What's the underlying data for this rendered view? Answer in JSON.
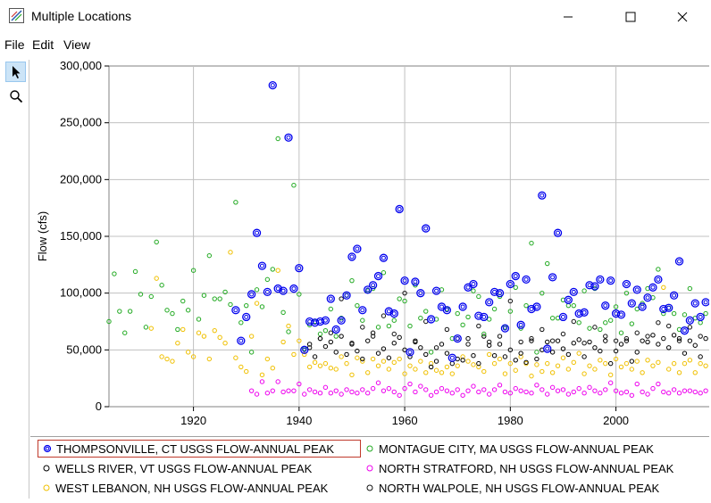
{
  "window": {
    "title": "Multiple Locations",
    "minimize_glyph": "—",
    "maximize_glyph": "☐",
    "close_glyph": "✕"
  },
  "menu": [
    "File",
    "Edit",
    "View"
  ],
  "toolbar": {
    "tools": [
      {
        "icon": "pointer-icon",
        "active": true
      },
      {
        "icon": "zoom-icon",
        "active": false
      }
    ]
  },
  "colors": {
    "thompsonville": "#0000ee",
    "montague": "#22aa22",
    "wells_river": "#000000",
    "north_stratford": "#ee00ee",
    "west_lebanon": "#f0c000",
    "north_walpole": "#111111",
    "grid": "#c0c0c0",
    "selection": "#c0392b"
  },
  "chart_data": {
    "type": "scatter",
    "ylabel": "Flow (cfs)",
    "xlabel": "",
    "title": "",
    "xlim": [
      1904,
      2018
    ],
    "ylim": [
      0,
      300000
    ],
    "x_ticks": [
      "1920",
      "1940",
      "1960",
      "1980",
      "2000"
    ],
    "y_ticks": [
      "0",
      "50,000",
      "100,000",
      "150,000",
      "200,000",
      "250,000",
      "300,000"
    ],
    "grid": true,
    "legend_position": "bottom",
    "legend": [
      "THOMPSONVILLE, CT USGS FLOW-ANNUAL PEAK",
      "MONTAGUE CITY, MA USGS FLOW-ANNUAL PEAK",
      "WELLS RIVER, VT USGS FLOW-ANNUAL PEAK",
      "NORTH STRATFORD, NH USGS FLOW-ANNUAL PEAK",
      "WEST LEBANON, NH USGS FLOW-ANNUAL PEAK",
      "NORTH WALPOLE, NH USGS FLOW-ANNUAL PEAK"
    ],
    "selected_series": 0,
    "series": [
      {
        "name": "THOMPSONVILLE, CT USGS FLOW-ANNUAL PEAK",
        "color_key": "thompsonville",
        "marker": "double-circle",
        "x": [
          1928,
          1929,
          1930,
          1931,
          1932,
          1933,
          1934,
          1935,
          1936,
          1937,
          1938,
          1939,
          1940,
          1941,
          1942,
          1943,
          1944,
          1945,
          1946,
          1947,
          1948,
          1949,
          1950,
          1951,
          1952,
          1953,
          1954,
          1955,
          1956,
          1957,
          1958,
          1959,
          1960,
          1961,
          1962,
          1963,
          1964,
          1965,
          1966,
          1967,
          1968,
          1969,
          1970,
          1971,
          1972,
          1973,
          1974,
          1975,
          1976,
          1977,
          1978,
          1979,
          1980,
          1981,
          1982,
          1983,
          1984,
          1985,
          1986,
          1987,
          1988,
          1989,
          1990,
          1991,
          1992,
          1993,
          1994,
          1995,
          1996,
          1997,
          1998,
          1999,
          2000,
          2001,
          2002,
          2003,
          2004,
          2005,
          2006,
          2007,
          2008,
          2009,
          2010,
          2011,
          2012,
          2013,
          2014,
          2015,
          2016,
          2017
        ],
        "y": [
          85000,
          58000,
          79000,
          99000,
          153000,
          124000,
          101000,
          283000,
          104000,
          102000,
          237000,
          104000,
          122000,
          50000,
          75000,
          74000,
          75000,
          76000,
          95000,
          68000,
          76000,
          98000,
          132000,
          139000,
          85000,
          103000,
          107000,
          115000,
          131000,
          84000,
          82000,
          174000,
          111000,
          48000,
          110000,
          100000,
          157000,
          77000,
          102000,
          88000,
          85000,
          43000,
          60000,
          88000,
          105000,
          108000,
          80000,
          79000,
          92000,
          101000,
          100000,
          69000,
          108000,
          115000,
          72000,
          112000,
          86000,
          88000,
          186000,
          51000,
          114000,
          153000,
          79000,
          94000,
          101000,
          82000,
          83000,
          107000,
          106000,
          112000,
          89000,
          111000,
          82000,
          81000,
          108000,
          91000,
          103000,
          88000,
          96000,
          105000,
          112000,
          86000,
          87000,
          98000,
          128000,
          67000,
          76000,
          91000,
          79000,
          92000
        ]
      },
      {
        "name": "MONTAGUE CITY, MA USGS FLOW-ANNUAL PEAK",
        "color_key": "montague",
        "marker": "circle",
        "x": [
          1904,
          1905,
          1906,
          1907,
          1908,
          1909,
          1910,
          1911,
          1912,
          1913,
          1914,
          1915,
          1916,
          1917,
          1918,
          1919,
          1920,
          1921,
          1922,
          1923,
          1924,
          1925,
          1926,
          1927,
          1928,
          1929,
          1930,
          1931,
          1932,
          1933,
          1934,
          1935,
          1936,
          1937,
          1938,
          1939,
          1940,
          1941,
          1942,
          1943,
          1944,
          1945,
          1946,
          1947,
          1948,
          1949,
          1950,
          1951,
          1952,
          1953,
          1954,
          1955,
          1956,
          1957,
          1958,
          1959,
          1960,
          1961,
          1962,
          1963,
          1964,
          1965,
          1966,
          1967,
          1968,
          1969,
          1970,
          1971,
          1972,
          1973,
          1974,
          1975,
          1976,
          1977,
          1978,
          1979,
          1980,
          1981,
          1982,
          1983,
          1984,
          1985,
          1986,
          1987,
          1988,
          1989,
          1990,
          1991,
          1992,
          1993,
          1994,
          1995,
          1996,
          1997,
          1998,
          1999,
          2000,
          2001,
          2002,
          2003,
          2004,
          2005,
          2006,
          2007,
          2008,
          2009,
          2010,
          2011,
          2012,
          2013,
          2014,
          2015,
          2016,
          2017
        ],
        "y": [
          75000,
          117000,
          84000,
          65000,
          84000,
          119000,
          99000,
          70000,
          97000,
          145000,
          107000,
          85000,
          82000,
          68000,
          93000,
          85000,
          120000,
          77000,
          98000,
          133000,
          95000,
          95000,
          101000,
          90000,
          180000,
          74000,
          89000,
          48000,
          103000,
          88000,
          112000,
          121000,
          236000,
          83000,
          66000,
          195000,
          99000,
          51000,
          72000,
          75000,
          64000,
          67000,
          86000,
          62000,
          78000,
          98000,
          111000,
          89000,
          76000,
          102000,
          104000,
          70000,
          118000,
          71000,
          76000,
          95000,
          93000,
          71000,
          107000,
          78000,
          84000,
          48000,
          77000,
          103000,
          86000,
          60000,
          82000,
          72000,
          79000,
          102000,
          97000,
          64000,
          77000,
          86000,
          97000,
          70000,
          84000,
          105000,
          69000,
          89000,
          144000,
          48000,
          100000,
          126000,
          78000,
          78000,
          94000,
          89000,
          89000,
          74000,
          102000,
          69000,
          104000,
          68000,
          74000,
          76000,
          88000,
          65000,
          100000,
          73000,
          86000,
          91000,
          104000,
          96000,
          121000,
          82000,
          87000,
          82000,
          68000,
          81000,
          104000,
          78000,
          74000,
          82000
        ]
      },
      {
        "name": "WELLS RIVER, VT USGS FLOW-ANNUAL PEAK",
        "color_key": "wells_river",
        "marker": "circle",
        "x": [
          1942,
          1943,
          1944,
          1945,
          1946,
          1947,
          1948,
          1949,
          1950,
          1951,
          1952,
          1953,
          1954,
          1955,
          1956,
          1957,
          1958,
          1959,
          1960,
          1961,
          1962,
          1963,
          1964,
          1965,
          1966,
          1967,
          1968,
          1969,
          1970,
          1971,
          1972,
          1973,
          1974,
          1975,
          1976,
          1977,
          1978,
          1979,
          1980,
          1981,
          1982,
          1983,
          1984,
          1985,
          1986,
          1987,
          1988,
          1989,
          1990,
          1991,
          1992,
          1993,
          1994,
          1995,
          1996,
          1997,
          1998,
          1999,
          2000,
          2001,
          2002,
          2003,
          2004,
          2005,
          2006,
          2007,
          2008,
          2009,
          2010,
          2011,
          2012,
          2013,
          2014,
          2015,
          2016,
          2017
        ],
        "y": [
          55000,
          44000,
          60000,
          53000,
          57000,
          48000,
          62000,
          46000,
          55000,
          49000,
          42000,
          58000,
          65000,
          47000,
          51000,
          43000,
          56000,
          61000,
          50000,
          44000,
          57000,
          52000,
          46000,
          35000,
          40000,
          55000,
          47000,
          38000,
          42000,
          41000,
          60000,
          45000,
          38000,
          62000,
          54000,
          45000,
          55000,
          44000,
          50000,
          41000,
          47000,
          39000,
          58000,
          42000,
          50000,
          57000,
          48000,
          58000,
          51000,
          46000,
          56000,
          59000,
          44000,
          57000,
          52000,
          49000,
          58000,
          38000,
          49000,
          55000,
          58000,
          40000,
          48000,
          58000,
          57000,
          63000,
          55000,
          60000,
          52000,
          63000,
          60000,
          47000,
          58000,
          54000,
          44000,
          60000
        ]
      },
      {
        "name": "NORTH STRATFORD, NH USGS FLOW-ANNUAL PEAK",
        "color_key": "north_stratford",
        "marker": "circle",
        "x": [
          1931,
          1932,
          1933,
          1934,
          1935,
          1936,
          1937,
          1938,
          1939,
          1940,
          1941,
          1942,
          1943,
          1944,
          1945,
          1946,
          1947,
          1948,
          1949,
          1950,
          1951,
          1952,
          1953,
          1954,
          1955,
          1956,
          1957,
          1958,
          1959,
          1960,
          1961,
          1962,
          1963,
          1964,
          1965,
          1966,
          1967,
          1968,
          1969,
          1970,
          1971,
          1972,
          1973,
          1974,
          1975,
          1976,
          1977,
          1978,
          1979,
          1980,
          1981,
          1982,
          1983,
          1984,
          1985,
          1986,
          1987,
          1988,
          1989,
          1990,
          1991,
          1992,
          1993,
          1994,
          1995,
          1996,
          1997,
          1998,
          1999,
          2000,
          2001,
          2002,
          2003,
          2004,
          2005,
          2006,
          2007,
          2008,
          2009,
          2010,
          2011,
          2012,
          2013,
          2014,
          2015,
          2016,
          2017
        ],
        "y": [
          14000,
          11000,
          22000,
          12000,
          14000,
          22000,
          13000,
          14000,
          14000,
          20000,
          11000,
          15000,
          13000,
          12000,
          17000,
          12000,
          14000,
          11000,
          15000,
          13000,
          12000,
          15000,
          12000,
          16000,
          21000,
          14000,
          16000,
          13000,
          10000,
          16000,
          20000,
          13000,
          18000,
          15000,
          10000,
          13000,
          16000,
          14000,
          12000,
          15000,
          10000,
          14000,
          18000,
          13000,
          15000,
          11000,
          15000,
          19000,
          13000,
          12000,
          16000,
          14000,
          13000,
          12000,
          19000,
          15000,
          11000,
          17000,
          14000,
          15000,
          11000,
          13000,
          16000,
          12000,
          17000,
          14000,
          12000,
          15000,
          21000,
          14000,
          12000,
          13000,
          10000,
          20000,
          13000,
          11000,
          16000,
          20000,
          13000,
          12000,
          15000,
          12000,
          14000,
          14000,
          13000,
          12000,
          14000
        ]
      },
      {
        "name": "WEST LEBANON, NH USGS FLOW-ANNUAL PEAK",
        "color_key": "west_lebanon",
        "marker": "circle",
        "x": [
          1912,
          1913,
          1914,
          1915,
          1916,
          1917,
          1918,
          1919,
          1920,
          1921,
          1922,
          1923,
          1924,
          1925,
          1926,
          1927,
          1928,
          1929,
          1930,
          1931,
          1932,
          1933,
          1934,
          1935,
          1936,
          1937,
          1938,
          1939,
          1940,
          1941,
          1942,
          1943,
          1944,
          1945,
          1946,
          1947,
          1948,
          1949,
          1950,
          1951,
          1952,
          1953,
          1954,
          1955,
          1956,
          1957,
          1958,
          1959,
          1960,
          1961,
          1962,
          1963,
          1964,
          1965,
          1966,
          1967,
          1968,
          1969,
          1970,
          1971,
          1972,
          1973,
          1974,
          1975,
          1976,
          1977,
          1978,
          1979,
          1980,
          1981,
          1982,
          1983,
          1984,
          1985,
          1986,
          1987,
          1988,
          1989,
          1990,
          1991,
          1992,
          1993,
          1994,
          1995,
          1996,
          1997,
          1998,
          1999,
          2000,
          2001,
          2002,
          2003,
          2004,
          2005,
          2006,
          2007,
          2008,
          2009,
          2010,
          2011,
          2012,
          2013,
          2014,
          2015,
          2016,
          2017
        ],
        "y": [
          69000,
          113000,
          44000,
          42000,
          40000,
          56000,
          68000,
          48000,
          44000,
          65000,
          62000,
          42000,
          67000,
          61000,
          56000,
          136000,
          43000,
          35000,
          31000,
          62000,
          91000,
          28000,
          42000,
          34000,
          120000,
          57000,
          71000,
          46000,
          58000,
          46000,
          35000,
          39000,
          36000,
          38000,
          34000,
          33000,
          44000,
          38000,
          28000,
          43000,
          40000,
          30000,
          42000,
          36000,
          40000,
          33000,
          39000,
          42000,
          29000,
          36000,
          33000,
          40000,
          30000,
          38000,
          32000,
          30000,
          35000,
          29000,
          36000,
          44000,
          40000,
          37000,
          35000,
          31000,
          46000,
          38000,
          42000,
          29000,
          38000,
          32000,
          44000,
          38000,
          27000,
          37000,
          31000,
          38000,
          30000,
          36000,
          43000,
          33000,
          39000,
          47000,
          29000,
          36000,
          33000,
          41000,
          38000,
          28000,
          42000,
          35000,
          38000,
          33000,
          40000,
          30000,
          41000,
          36000,
          39000,
          105000,
          33000,
          38000,
          30000,
          38000,
          41000,
          30000,
          38000,
          36000
        ]
      },
      {
        "name": "NORTH WALPOLE, NH USGS FLOW-ANNUAL PEAK",
        "color_key": "north_walpole",
        "marker": "circle",
        "x": [
          1942,
          1944,
          1946,
          1948,
          1950,
          1952,
          1954,
          1956,
          1958,
          1960,
          1962,
          1964,
          1966,
          1968,
          1970,
          1972,
          1974,
          1976,
          1978,
          1980,
          1982,
          1984,
          1986,
          1988,
          1990,
          1992,
          1994,
          1996,
          1998,
          2000,
          2002,
          2004,
          2006,
          2008,
          2010,
          2012,
          2014,
          2016
        ],
        "y": [
          52000,
          60000,
          65000,
          95000,
          56000,
          70000,
          62000,
          80000,
          64000,
          100000,
          58000,
          75000,
          52000,
          68000,
          60000,
          55000,
          71000,
          57000,
          62000,
          93000,
          57000,
          60000,
          68000,
          58000,
          64000,
          75000,
          56000,
          70000,
          62000,
          58000,
          60000,
          65000,
          62000,
          74000,
          71000,
          58000,
          70000,
          62000
        ]
      }
    ]
  }
}
